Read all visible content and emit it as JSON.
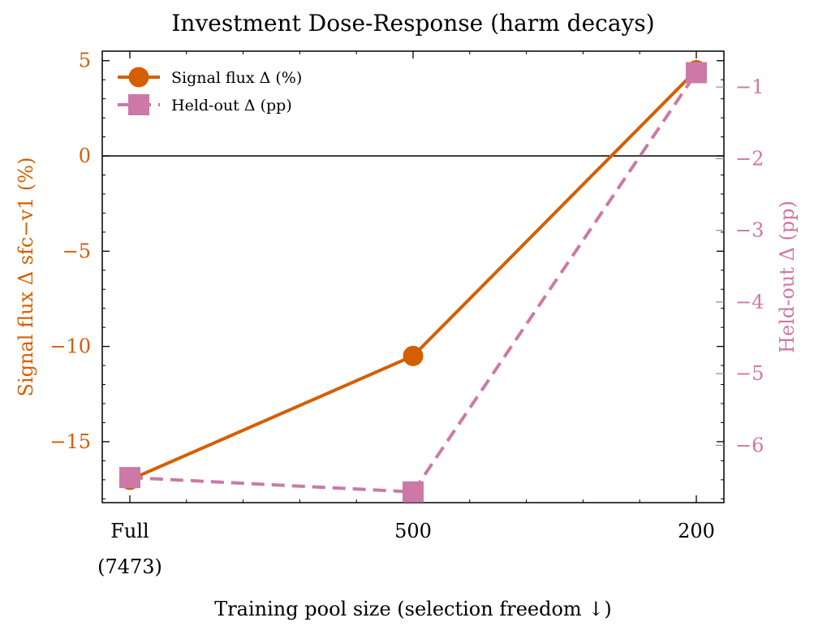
{
  "chart_data": {
    "type": "line",
    "title": "Investment Dose-Response (harm decays)",
    "xlabel": "Training pool size (selection freedom ↓)",
    "ylabel_left": "Signal flux Δ sfc−v1 (%)",
    "ylabel_right": "Held-out Δ (pp)",
    "categories": [
      {
        "line1": "Full",
        "line2": "(7473)"
      },
      {
        "line1": "500",
        "line2": ""
      },
      {
        "line1": "200",
        "line2": ""
      }
    ],
    "ylim_left": [
      -18.2,
      5.5
    ],
    "ylim_right": [
      -6.8,
      -0.5
    ],
    "yticks_left": [
      5,
      0,
      -5,
      -10,
      -15
    ],
    "yticks_left_labels": [
      "5",
      "0",
      "−5",
      "−10",
      "−15"
    ],
    "yticks_right": [
      -1,
      -2,
      -3,
      -4,
      -5,
      -6
    ],
    "yticks_right_labels": [
      "−1",
      "−2",
      "−3",
      "−4",
      "−5",
      "−6"
    ],
    "zero_line": 0,
    "series": [
      {
        "name": "Signal flux Δ (%)",
        "axis": "left",
        "marker": "circle",
        "style": "solid",
        "color": "#d55e00",
        "values": [
          -17.0,
          -10.5,
          4.5
        ]
      },
      {
        "name": "Held-out Δ (pp)",
        "axis": "right",
        "marker": "square",
        "style": "dashed",
        "color": "#cc79a7",
        "values": [
          -6.45,
          -6.65,
          -0.8
        ]
      }
    ],
    "legend": "top-left",
    "grid": false
  }
}
